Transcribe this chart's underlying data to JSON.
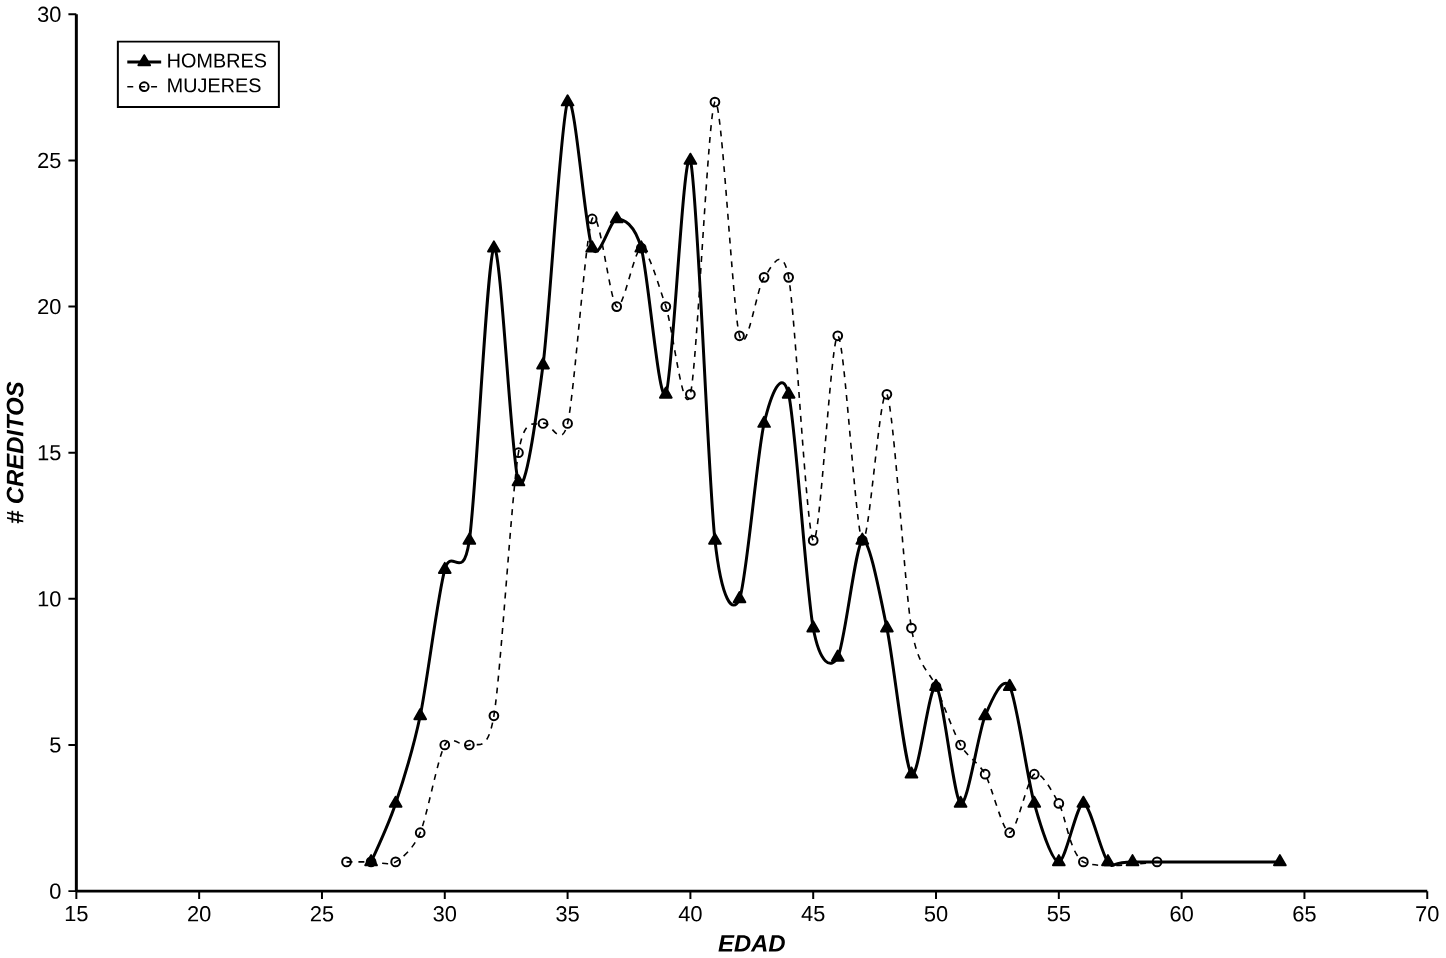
{
  "chart_data": {
    "type": "line",
    "xlabel": "EDAD",
    "ylabel": "# CREDITOS",
    "xlim": [
      15,
      70
    ],
    "xticks": [
      15,
      20,
      25,
      30,
      35,
      40,
      45,
      50,
      55,
      60,
      65,
      70
    ],
    "ylim": [
      0,
      30
    ],
    "yticks": [
      0,
      5,
      10,
      15,
      20,
      25,
      30
    ],
    "grid": false,
    "legend": "top left",
    "series": [
      {
        "name": "HOMBRES",
        "color": "#000000",
        "marker": "triangle",
        "line_style": "solid",
        "x": [
          27,
          28,
          29,
          30,
          31,
          32,
          33,
          34,
          35,
          36,
          37,
          38,
          39,
          40,
          41,
          42,
          43,
          44,
          45,
          46,
          47,
          48,
          49,
          50,
          51,
          52,
          53,
          54,
          55,
          56,
          57,
          58,
          64
        ],
        "values": [
          1,
          3,
          6,
          11,
          12,
          22,
          14,
          18,
          27,
          22,
          23,
          22,
          17,
          25,
          12,
          10,
          16,
          17,
          9,
          8,
          12,
          9,
          4,
          7,
          3,
          6,
          7,
          3,
          1,
          3,
          1,
          1,
          1
        ]
      },
      {
        "name": "MUJERES",
        "color": "#000000",
        "marker": "circle",
        "line_style": "dashed",
        "x": [
          26,
          27,
          28,
          29,
          30,
          31,
          32,
          33,
          34,
          35,
          36,
          37,
          38,
          39,
          40,
          41,
          42,
          43,
          44,
          45,
          46,
          47,
          48,
          49,
          50,
          51,
          52,
          53,
          54,
          55,
          56,
          59
        ],
        "values": [
          1,
          1,
          1,
          2,
          5,
          5,
          6,
          15,
          16,
          16,
          23,
          20,
          22,
          20,
          17,
          27,
          19,
          21,
          21,
          12,
          19,
          12,
          17,
          9,
          7,
          5,
          4,
          2,
          4,
          3,
          1,
          1
        ]
      }
    ]
  }
}
